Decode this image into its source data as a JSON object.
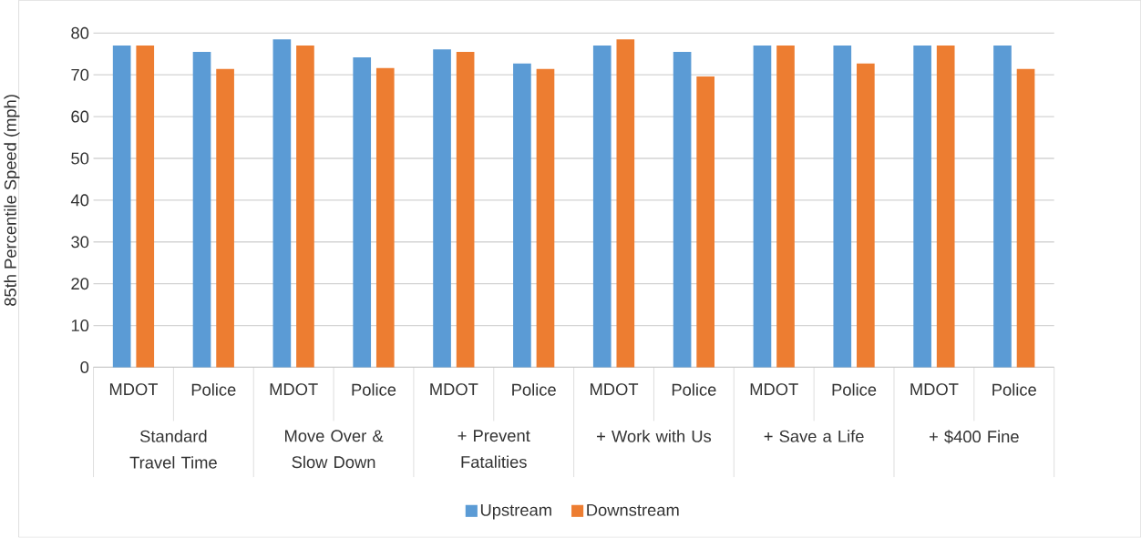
{
  "chart_data": {
    "type": "bar",
    "ylabel": "85th Percentile Speed (mph)",
    "categories": [
      "MDOT",
      "Police",
      "MDOT",
      "Police",
      "MDOT",
      "Police",
      "MDOT",
      "Police",
      "MDOT",
      "Police",
      "MDOT",
      "Police"
    ],
    "annotations": [
      "Standard Travel Time",
      "Move Over & Slow Down",
      "+ Prevent Fatalities",
      "+ Work with Us",
      "+ Save a Life",
      "+ $400 Fine"
    ],
    "series": [
      {
        "name": "Upstream",
        "color": "#5b9bd5",
        "values": [
          77,
          75.5,
          78.5,
          74.2,
          76.1,
          72.7,
          77,
          75.5,
          77,
          77,
          77,
          77
        ]
      },
      {
        "name": "Downstream",
        "color": "#ed7d31",
        "values": [
          77,
          71.4,
          77,
          71.6,
          75.5,
          71.4,
          78.5,
          69.6,
          77,
          72.7,
          77,
          71.4
        ]
      }
    ],
    "ylim": [
      0,
      80
    ],
    "yticks": [
      0,
      10,
      20,
      30,
      40,
      50,
      60,
      70,
      80
    ],
    "grid": "y",
    "legend": "bottom"
  }
}
